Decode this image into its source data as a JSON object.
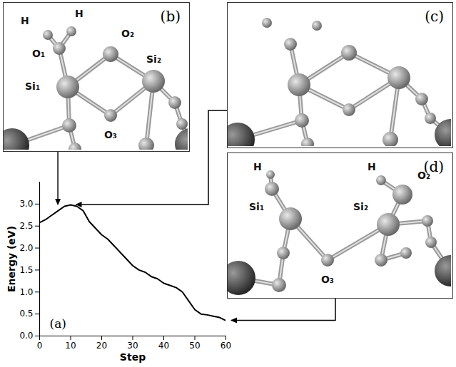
{
  "chart_data": {
    "type": "line",
    "x_label": "Step",
    "y_label": "Energy (eV)",
    "x": [
      0,
      2,
      4,
      6,
      8,
      10,
      12,
      14,
      16,
      18,
      20,
      22,
      24,
      26,
      28,
      30,
      32,
      34,
      36,
      38,
      40,
      42,
      44,
      46,
      48,
      50,
      52,
      54,
      56,
      58,
      60
    ],
    "series": [
      {
        "name": "Energy",
        "color": "#000000",
        "line_style": "solid",
        "values": [
          2.58,
          2.65,
          2.75,
          2.85,
          2.95,
          2.98,
          2.95,
          2.85,
          2.6,
          2.45,
          2.3,
          2.2,
          2.05,
          1.9,
          1.75,
          1.6,
          1.5,
          1.45,
          1.35,
          1.3,
          1.2,
          1.15,
          1.1,
          1.0,
          0.8,
          0.6,
          0.5,
          0.48,
          0.45,
          0.42,
          0.35
        ]
      }
    ],
    "xlim": [
      0,
      60
    ],
    "xticks": [
      0,
      10,
      20,
      30,
      40,
      50,
      60
    ],
    "ylim": [
      0,
      3.5
    ],
    "yticks": [
      {
        "value": 0,
        "label": "0.0"
      },
      0.5,
      {
        "value": 1,
        "label": "1.0"
      },
      1.5,
      {
        "value": 2,
        "label": "2.0"
      },
      2.5,
      {
        "value": 3,
        "label": "3.0"
      }
    ],
    "grid": false,
    "annotations": [
      {
        "text": "(a)"
      }
    ]
  },
  "panels": [
    {
      "label": "(b)",
      "atom_labels": [
        "H",
        "H",
        "O₁",
        "O₂",
        "Si₁",
        "Si₂",
        "O₃"
      ]
    },
    {
      "label": "(c)"
    },
    {
      "label": "(d)",
      "atom_labels": [
        "H",
        "Si₁",
        "H",
        "O₂",
        "Si₂",
        "O₃"
      ]
    }
  ]
}
